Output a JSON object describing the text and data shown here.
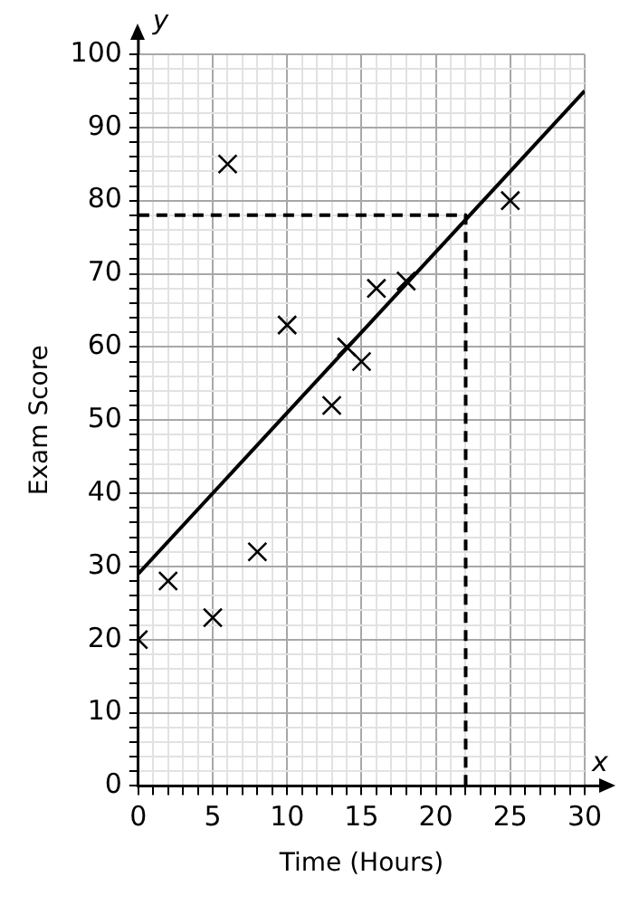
{
  "chart_data": {
    "type": "scatter",
    "xlabel": "Time (Hours)",
    "ylabel": "Exam Score",
    "annotations": [
      "x",
      "y"
    ],
    "xlim": [
      0,
      30
    ],
    "ylim": [
      0,
      100
    ],
    "xticks": [
      0,
      {
        "value": 1,
        "label": null
      },
      {
        "value": 2,
        "label": null
      },
      {
        "value": 3,
        "label": null
      },
      {
        "value": 4,
        "label": null
      },
      5,
      {
        "value": 6,
        "label": null
      },
      {
        "value": 7,
        "label": null
      },
      {
        "value": 8,
        "label": null
      },
      {
        "value": 9,
        "label": null
      },
      10,
      {
        "value": 11,
        "label": null
      },
      {
        "value": 12,
        "label": null
      },
      {
        "value": 13,
        "label": null
      },
      {
        "value": 14,
        "label": null
      },
      15,
      {
        "value": 16,
        "label": null
      },
      {
        "value": 17,
        "label": null
      },
      {
        "value": 18,
        "label": null
      },
      {
        "value": 19,
        "label": null
      },
      20,
      {
        "value": 21,
        "label": null
      },
      {
        "value": 22,
        "label": null
      },
      {
        "value": 23,
        "label": null
      },
      {
        "value": 24,
        "label": null
      },
      25,
      {
        "value": 26,
        "label": null
      },
      {
        "value": 27,
        "label": null
      },
      {
        "value": 28,
        "label": null
      },
      {
        "value": 29,
        "label": null
      },
      30
    ],
    "yticks": [
      0,
      {
        "value": 2,
        "label": null
      },
      {
        "value": 4,
        "label": null
      },
      {
        "value": 6,
        "label": null
      },
      {
        "value": 8,
        "label": null
      },
      10,
      {
        "value": 12,
        "label": null
      },
      {
        "value": 14,
        "label": null
      },
      {
        "value": 16,
        "label": null
      },
      {
        "value": 18,
        "label": null
      },
      20,
      {
        "value": 22,
        "label": null
      },
      {
        "value": 24,
        "label": null
      },
      {
        "value": 26,
        "label": null
      },
      {
        "value": 28,
        "label": null
      },
      30,
      {
        "value": 32,
        "label": null
      },
      {
        "value": 34,
        "label": null
      },
      {
        "value": 36,
        "label": null
      },
      {
        "value": 38,
        "label": null
      },
      40,
      {
        "value": 42,
        "label": null
      },
      {
        "value": 44,
        "label": null
      },
      {
        "value": 46,
        "label": null
      },
      {
        "value": 48,
        "label": null
      },
      50,
      {
        "value": 52,
        "label": null
      },
      {
        "value": 54,
        "label": null
      },
      {
        "value": 56,
        "label": null
      },
      {
        "value": 58,
        "label": null
      },
      60,
      {
        "value": 62,
        "label": null
      },
      {
        "value": 64,
        "label": null
      },
      {
        "value": 66,
        "label": null
      },
      {
        "value": 68,
        "label": null
      },
      70,
      {
        "value": 72,
        "label": null
      },
      {
        "value": 74,
        "label": null
      },
      {
        "value": 76,
        "label": null
      },
      {
        "value": 78,
        "label": null
      },
      80,
      {
        "value": 82,
        "label": null
      },
      {
        "value": 84,
        "label": null
      },
      {
        "value": 86,
        "label": null
      },
      {
        "value": 88,
        "label": null
      },
      90,
      {
        "value": 92,
        "label": null
      },
      {
        "value": 94,
        "label": null
      },
      {
        "value": 96,
        "label": null
      },
      {
        "value": 98,
        "label": null
      },
      100
    ],
    "grid": true,
    "legend": false,
    "series": [
      {
        "type": "scatter",
        "marker": "cross",
        "color": "#000000",
        "x": [
          0,
          2,
          5,
          6,
          8,
          10,
          13,
          14,
          15,
          16,
          18,
          25
        ],
        "values": [
          20,
          28,
          23,
          85,
          32,
          63,
          52,
          60,
          58,
          68,
          69,
          80
        ]
      },
      {
        "type": "line",
        "line_style": "solid",
        "color": "#000000",
        "x": [
          0,
          30
        ],
        "values": [
          29,
          95
        ]
      },
      {
        "type": "line",
        "line_style": "dashed",
        "color": "#000000",
        "x": [
          0,
          22,
          22
        ],
        "values": [
          78,
          78,
          0
        ]
      }
    ]
  }
}
